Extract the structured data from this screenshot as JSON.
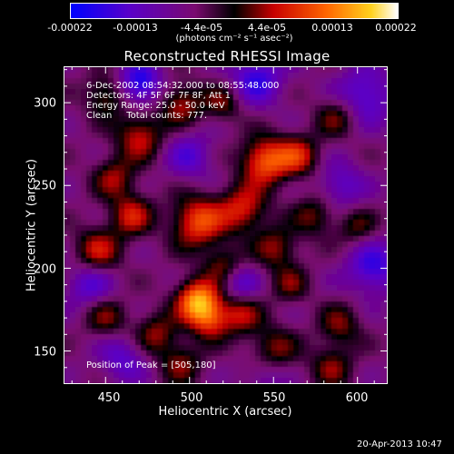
{
  "chart_data": {
    "type": "heatmap",
    "title": "Reconstructed RHESSI Image",
    "xlabel": "Heliocentric X (arcsec)",
    "ylabel": "Heliocentric Y (arcsec)",
    "xlim": [
      425,
      618
    ],
    "ylim": [
      130,
      322
    ],
    "x_ticks": [
      "450",
      "500",
      "550",
      "600"
    ],
    "y_ticks": [
      "150",
      "200",
      "250",
      "300"
    ],
    "colorbar": {
      "tick_labels": [
        "-0.00022",
        "-0.00013",
        "-4.4e-05",
        "4.4e-05",
        "0.00013",
        "0.00022"
      ],
      "units": "(photons cm⁻² s⁻¹ asec⁻²)",
      "range": [
        -0.00022,
        0.00022
      ],
      "colors": [
        "#0000ff",
        "#5a00c8",
        "#7a0a70",
        "#000000",
        "#c80000",
        "#ff6400",
        "#ffd21e",
        "#ffffff"
      ]
    },
    "annotations": {
      "time_range": "6-Dec-2002 08:54:32.000 to 08:55:48.000",
      "detectors": "Detectors: 4F 5F 6F 7F 8F, Att 1",
      "energy_range": "Energy Range: 25.0 - 50.0 keV",
      "method": "Clean     Total counts: 777.",
      "peak": "Position of Peak = [505,180]"
    },
    "sources": [
      {
        "x": 505,
        "y": 180,
        "amp": 1.0,
        "sigma": 9
      },
      {
        "x": 512,
        "y": 168,
        "amp": 0.55,
        "sigma": 8
      },
      {
        "x": 545,
        "y": 265,
        "amp": 0.8,
        "sigma": 10
      },
      {
        "x": 565,
        "y": 268,
        "amp": 0.55,
        "sigma": 9
      },
      {
        "x": 505,
        "y": 228,
        "amp": 0.75,
        "sigma": 11
      },
      {
        "x": 532,
        "y": 236,
        "amp": 0.6,
        "sigma": 10
      },
      {
        "x": 465,
        "y": 232,
        "amp": 0.55,
        "sigma": 9
      },
      {
        "x": 445,
        "y": 210,
        "amp": 0.55,
        "sigma": 10
      },
      {
        "x": 455,
        "y": 255,
        "amp": 0.45,
        "sigma": 9
      },
      {
        "x": 470,
        "y": 280,
        "amp": 0.55,
        "sigma": 10
      },
      {
        "x": 495,
        "y": 300,
        "amp": 0.5,
        "sigma": 9
      },
      {
        "x": 450,
        "y": 305,
        "amp": 0.45,
        "sigma": 9
      },
      {
        "x": 520,
        "y": 300,
        "amp": 0.4,
        "sigma": 8
      },
      {
        "x": 552,
        "y": 212,
        "amp": 0.45,
        "sigma": 9
      },
      {
        "x": 520,
        "y": 202,
        "amp": 0.4,
        "sigma": 8
      },
      {
        "x": 575,
        "y": 232,
        "amp": 0.4,
        "sigma": 9
      },
      {
        "x": 588,
        "y": 292,
        "amp": 0.4,
        "sigma": 9
      },
      {
        "x": 600,
        "y": 225,
        "amp": 0.35,
        "sigma": 8
      },
      {
        "x": 530,
        "y": 172,
        "amp": 0.5,
        "sigma": 9
      },
      {
        "x": 550,
        "y": 150,
        "amp": 0.45,
        "sigma": 10
      },
      {
        "x": 590,
        "y": 165,
        "amp": 0.4,
        "sigma": 9
      },
      {
        "x": 560,
        "y": 190,
        "amp": 0.35,
        "sigma": 8
      },
      {
        "x": 480,
        "y": 160,
        "amp": 0.45,
        "sigma": 9
      },
      {
        "x": 450,
        "y": 170,
        "amp": 0.4,
        "sigma": 9
      },
      {
        "x": 495,
        "y": 142,
        "amp": 0.4,
        "sigma": 9
      },
      {
        "x": 585,
        "y": 140,
        "amp": 0.4,
        "sigma": 9
      },
      {
        "x": 470,
        "y": 312,
        "amp": -0.7,
        "sigma": 9
      },
      {
        "x": 540,
        "y": 315,
        "amp": -0.55,
        "sigma": 11
      },
      {
        "x": 605,
        "y": 305,
        "amp": -0.5,
        "sigma": 12
      },
      {
        "x": 610,
        "y": 200,
        "amp": -0.55,
        "sigma": 11
      },
      {
        "x": 440,
        "y": 190,
        "amp": -0.45,
        "sigma": 10
      },
      {
        "x": 530,
        "y": 190,
        "amp": -0.4,
        "sigma": 8
      },
      {
        "x": 460,
        "y": 145,
        "amp": -0.4,
        "sigma": 10
      },
      {
        "x": 500,
        "y": 268,
        "amp": -0.4,
        "sigma": 10
      },
      {
        "x": 590,
        "y": 250,
        "amp": -0.4,
        "sigma": 10
      },
      {
        "x": 545,
        "y": 135,
        "amp": -0.3,
        "sigma": 9
      }
    ]
  },
  "footer": {
    "timestamp": "20-Apr-2013 10:47"
  }
}
